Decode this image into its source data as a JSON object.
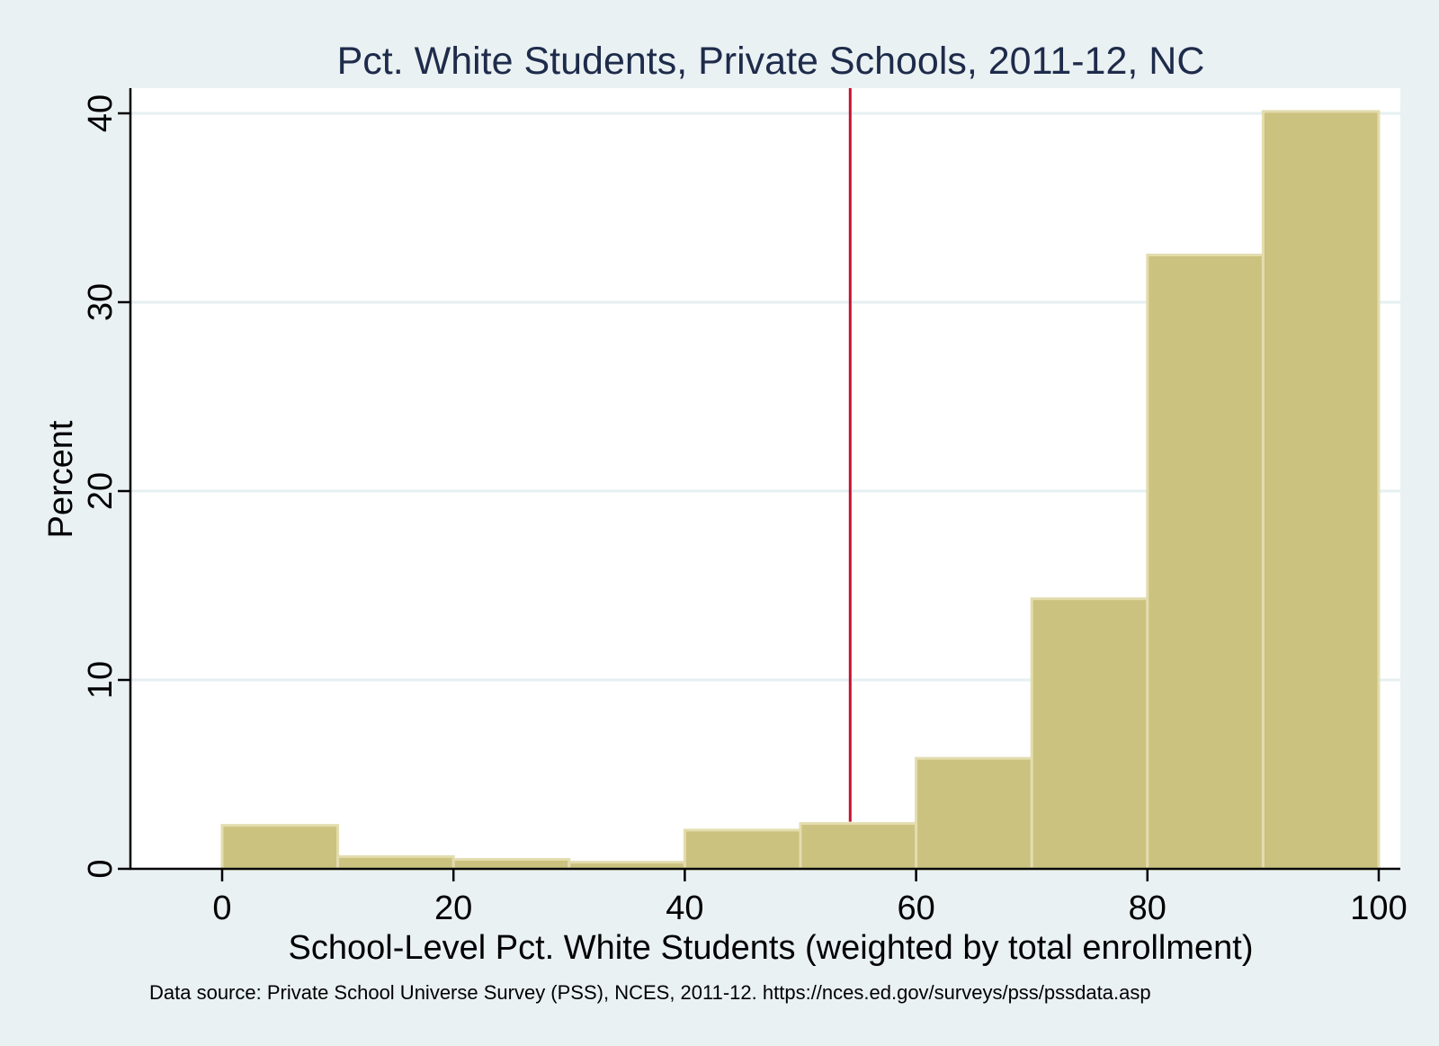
{
  "chart_data": {
    "type": "bar",
    "subtype": "histogram",
    "title": "Pct. White Students, Private Schools, 2011-12, NC",
    "xlabel": "School-Level Pct. White Students (weighted by total enrollment)",
    "ylabel": "Percent",
    "note": "Data source: Private School Universe Survey (PSS), NCES, 2011-12. https://nces.ed.gov/surveys/pss/pssdata.asp",
    "xlim": [
      -8,
      102
    ],
    "ylim": [
      0,
      41.2
    ],
    "xticks": [
      0,
      20,
      40,
      60,
      80,
      100
    ],
    "yticks": [
      0,
      10,
      20,
      30,
      40
    ],
    "bins": [
      {
        "start": 0,
        "end": 10,
        "value": 2.3
      },
      {
        "start": 10,
        "end": 20,
        "value": 0.65
      },
      {
        "start": 20,
        "end": 30,
        "value": 0.5
      },
      {
        "start": 30,
        "end": 40,
        "value": 0.35
      },
      {
        "start": 40,
        "end": 50,
        "value": 2.05
      },
      {
        "start": 50,
        "end": 60,
        "value": 2.4
      },
      {
        "start": 60,
        "end": 70,
        "value": 5.85
      },
      {
        "start": 70,
        "end": 80,
        "value": 14.3
      },
      {
        "start": 80,
        "end": 90,
        "value": 32.5
      },
      {
        "start": 90,
        "end": 100,
        "value": 40.1
      }
    ],
    "reference_line": {
      "x": 54.3
    },
    "colors": {
      "background": "#eaf1f3",
      "plot_background": "#ffffff",
      "bar_fill": "#cbc27f",
      "bar_edge": "#e3dcae",
      "gridline": "#e6eff1",
      "reference_line": "#c41230",
      "title": "#1e2b4a",
      "text": "#000000"
    }
  }
}
